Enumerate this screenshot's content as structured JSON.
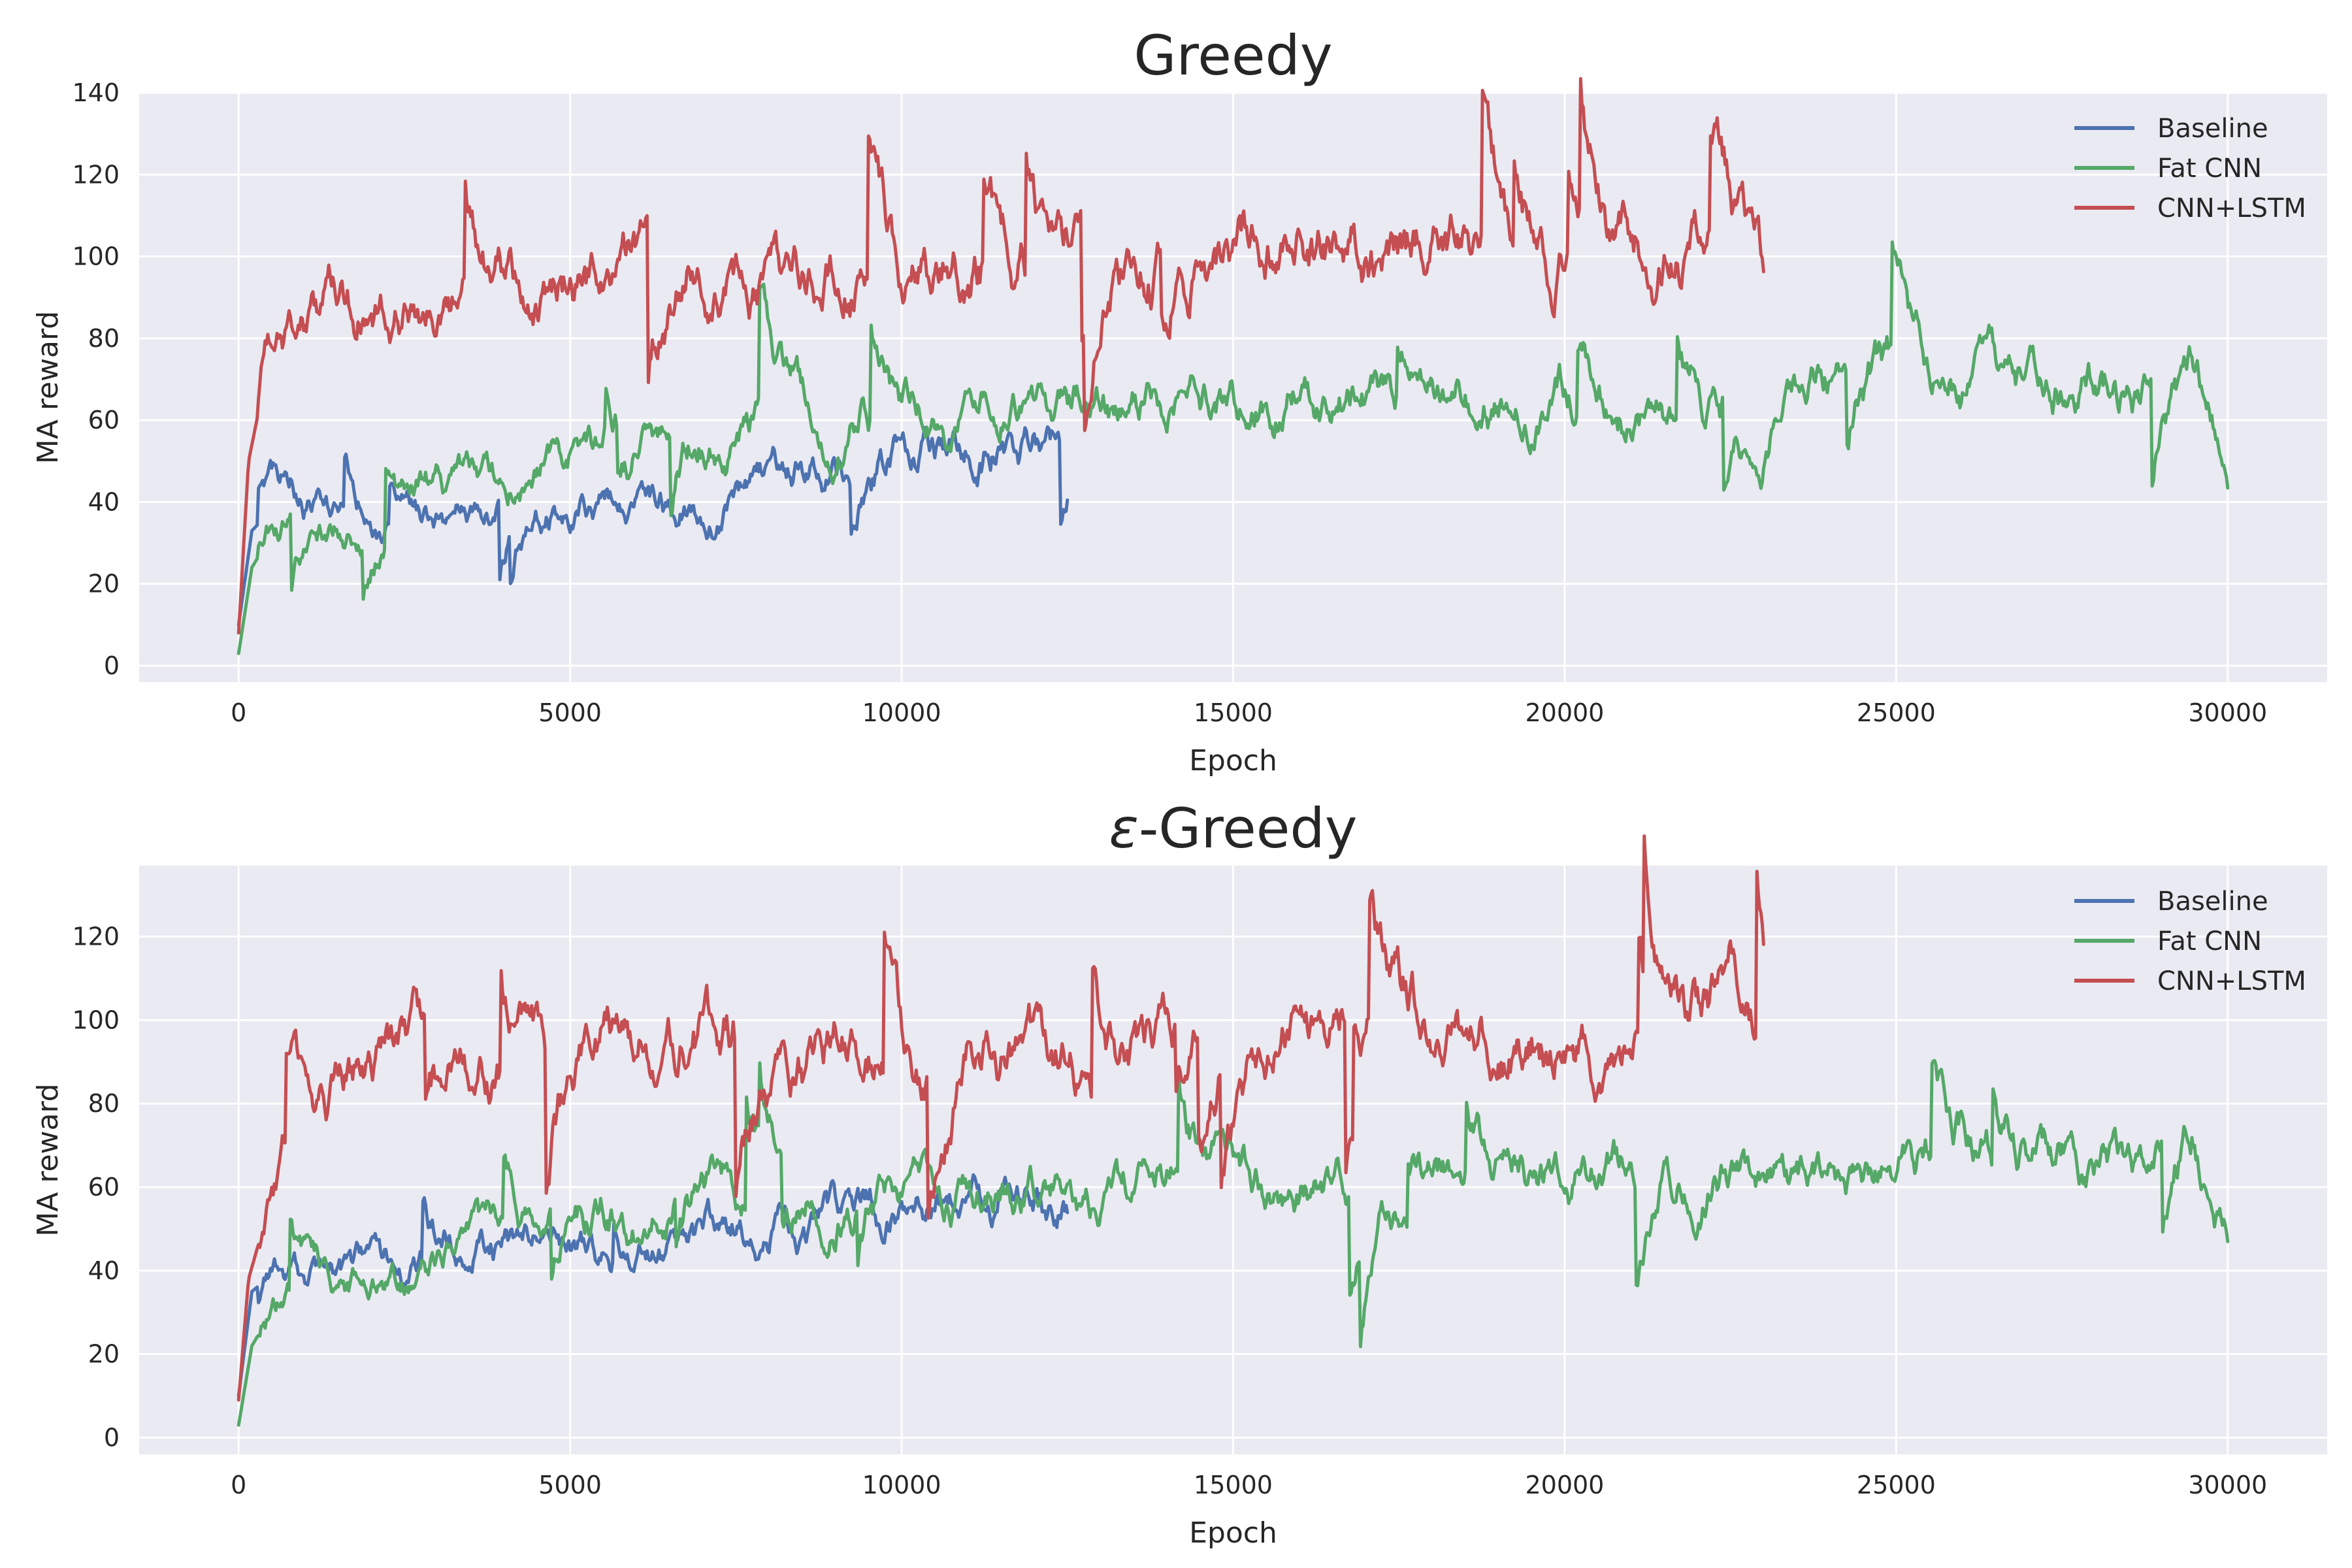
{
  "colors": {
    "baseline": "#4c72b0",
    "fat_cnn": "#55a868",
    "cnn_lstm": "#c44e52",
    "plot_background": "#eaeaf2",
    "grid": "#ffffff",
    "text": "#262626"
  },
  "chart_data": [
    {
      "type": "line",
      "title": "Greedy",
      "xlabel": "Epoch",
      "ylabel": "MA reward",
      "xlim": [
        -1500,
        31500
      ],
      "ylim": [
        -4,
        140
      ],
      "xticks": [
        0,
        5000,
        10000,
        15000,
        20000,
        25000,
        30000
      ],
      "yticks": [
        0,
        20,
        40,
        60,
        80,
        100,
        120,
        140
      ],
      "grid": true,
      "legend": "top-right",
      "series": [
        {
          "name": "Baseline",
          "color": "#4c72b0",
          "points": [
            [
              0,
              10
            ],
            [
              200,
              33
            ],
            [
              500,
              38
            ],
            [
              800,
              40
            ],
            [
              1200,
              39
            ],
            [
              1600,
              37
            ],
            [
              2000,
              35
            ],
            [
              2500,
              34
            ],
            [
              3000,
              36
            ],
            [
              3500,
              38
            ],
            [
              4000,
              39
            ],
            [
              4500,
              40
            ],
            [
              5000,
              41
            ],
            [
              5500,
              41
            ],
            [
              6000,
              40
            ],
            [
              6500,
              39
            ],
            [
              7000,
              41
            ],
            [
              7500,
              42
            ],
            [
              8000,
              44
            ],
            [
              8500,
              47
            ],
            [
              9000,
              48
            ],
            [
              9500,
              50
            ],
            [
              10000,
              52
            ],
            [
              10500,
              54
            ],
            [
              11000,
              56
            ],
            [
              11500,
              56
            ],
            [
              12000,
              54
            ],
            [
              12500,
              53
            ]
          ]
        },
        {
          "name": "Fat CNN",
          "color": "#55a868",
          "points": [
            [
              0,
              3
            ],
            [
              200,
              24
            ],
            [
              500,
              32
            ],
            [
              800,
              35
            ],
            [
              1200,
              36
            ],
            [
              1600,
              34
            ],
            [
              2000,
              35
            ],
            [
              2500,
              37
            ],
            [
              3000,
              42
            ],
            [
              3500,
              44
            ],
            [
              4000,
              46
            ],
            [
              4500,
              50
            ],
            [
              5000,
              55
            ],
            [
              5500,
              53
            ],
            [
              6000,
              56
            ],
            [
              6500,
              60
            ],
            [
              7000,
              58
            ],
            [
              7500,
              56
            ],
            [
              8000,
              60
            ],
            [
              8500,
              62
            ],
            [
              9000,
              58
            ],
            [
              9500,
              65
            ],
            [
              10000,
              60
            ],
            [
              10500,
              58
            ],
            [
              11000,
              62
            ],
            [
              11500,
              65
            ],
            [
              12000,
              63
            ],
            [
              13000,
              62
            ],
            [
              14000,
              65
            ],
            [
              15000,
              66
            ],
            [
              16000,
              68
            ],
            [
              17000,
              66
            ],
            [
              18000,
              64
            ],
            [
              19000,
              66
            ],
            [
              20000,
              68
            ],
            [
              21000,
              60
            ],
            [
              22000,
              62
            ],
            [
              23000,
              60
            ],
            [
              24000,
              70
            ],
            [
              25000,
              75
            ],
            [
              26000,
              68
            ],
            [
              27000,
              66
            ],
            [
              28000,
              67
            ],
            [
              29000,
              65
            ],
            [
              29500,
              72
            ],
            [
              30000,
              46
            ]
          ]
        },
        {
          "name": "CNN+LSTM",
          "color": "#c44e52",
          "points": [
            [
              0,
              8
            ],
            [
              150,
              50
            ],
            [
              400,
              70
            ],
            [
              800,
              78
            ],
            [
              1200,
              84
            ],
            [
              1600,
              88
            ],
            [
              2000,
              90
            ],
            [
              2500,
              88
            ],
            [
              3000,
              86
            ],
            [
              3500,
              90
            ],
            [
              4000,
              92
            ],
            [
              4500,
              90
            ],
            [
              5000,
              92
            ],
            [
              5500,
              93
            ],
            [
              6000,
              95
            ],
            [
              6500,
              98
            ],
            [
              7000,
              100
            ],
            [
              7500,
              97
            ],
            [
              8000,
              90
            ],
            [
              8500,
              92
            ],
            [
              9000,
              98
            ],
            [
              9500,
              96
            ],
            [
              10000,
              95
            ],
            [
              11000,
              98
            ],
            [
              12000,
              97
            ],
            [
              13000,
              99
            ],
            [
              14000,
              100
            ],
            [
              15000,
              102
            ],
            [
              16000,
              104
            ],
            [
              17000,
              100
            ],
            [
              18000,
              102
            ],
            [
              19000,
              99
            ],
            [
              20000,
              100
            ],
            [
              21000,
              100
            ],
            [
              22000,
              104
            ],
            [
              22500,
              108
            ],
            [
              23000,
              95
            ]
          ]
        }
      ]
    },
    {
      "type": "line",
      "title": "-Greedy",
      "title_symbol": "ε",
      "xlabel": "Epoch",
      "ylabel": "MA reward",
      "xlim": [
        -1500,
        31500
      ],
      "ylim": [
        -4,
        137
      ],
      "xticks": [
        0,
        5000,
        10000,
        15000,
        20000,
        25000,
        30000
      ],
      "yticks": [
        0,
        20,
        40,
        60,
        80,
        100,
        120
      ],
      "grid": true,
      "legend": "top-right",
      "series": [
        {
          "name": "Baseline",
          "color": "#4c72b0",
          "points": [
            [
              0,
              10
            ],
            [
              200,
              35
            ],
            [
              500,
              39
            ],
            [
              800,
              39
            ],
            [
              1200,
              38
            ],
            [
              1600,
              37
            ],
            [
              2000,
              39
            ],
            [
              2500,
              40
            ],
            [
              3000,
              42
            ],
            [
              3500,
              45
            ],
            [
              4000,
              46
            ],
            [
              4500,
              47
            ],
            [
              5000,
              44
            ],
            [
              5500,
              43
            ],
            [
              6000,
              42
            ],
            [
              6500,
              45
            ],
            [
              7000,
              48
            ],
            [
              7500,
              50
            ],
            [
              8000,
              52
            ],
            [
              8500,
              50
            ],
            [
              9000,
              52
            ],
            [
              9500,
              53
            ],
            [
              10000,
              55
            ],
            [
              10500,
              56
            ],
            [
              11000,
              57
            ],
            [
              11500,
              58
            ],
            [
              12000,
              58
            ],
            [
              12500,
              56
            ]
          ]
        },
        {
          "name": "Fat CNN",
          "color": "#55a868",
          "points": [
            [
              0,
              3
            ],
            [
              200,
              22
            ],
            [
              500,
              30
            ],
            [
              800,
              34
            ],
            [
              1200,
              36
            ],
            [
              1600,
              35
            ],
            [
              2000,
              36
            ],
            [
              2500,
              37
            ],
            [
              3000,
              42
            ],
            [
              3500,
              45
            ],
            [
              4000,
              48
            ],
            [
              4500,
              52
            ],
            [
              5000,
              55
            ],
            [
              5500,
              56
            ],
            [
              6000,
              52
            ],
            [
              6500,
              58
            ],
            [
              7000,
              62
            ],
            [
              7500,
              58
            ],
            [
              8000,
              60
            ],
            [
              8500,
              62
            ],
            [
              9000,
              56
            ],
            [
              9500,
              60
            ],
            [
              10000,
              58
            ],
            [
              10500,
              60
            ],
            [
              11000,
              62
            ],
            [
              11500,
              60
            ],
            [
              12000,
              58
            ],
            [
              13000,
              56
            ],
            [
              14000,
              64
            ],
            [
              15000,
              65
            ],
            [
              16000,
              62
            ],
            [
              17000,
              60
            ],
            [
              18000,
              62
            ],
            [
              19000,
              65
            ],
            [
              20000,
              62
            ],
            [
              21000,
              64
            ],
            [
              22000,
              66
            ],
            [
              23000,
              62
            ],
            [
              24000,
              63
            ],
            [
              25000,
              66
            ],
            [
              26000,
              70
            ],
            [
              27000,
              65
            ],
            [
              28000,
              63
            ],
            [
              29000,
              67
            ],
            [
              29500,
              78
            ],
            [
              30000,
              52
            ]
          ]
        },
        {
          "name": "CNN+LSTM",
          "color": "#c44e52",
          "points": [
            [
              0,
              9
            ],
            [
              150,
              38
            ],
            [
              400,
              52
            ],
            [
              800,
              72
            ],
            [
              1200,
              78
            ],
            [
              1600,
              84
            ],
            [
              2000,
              88
            ],
            [
              2500,
              92
            ],
            [
              3000,
              94
            ],
            [
              3500,
              88
            ],
            [
              4000,
              86
            ],
            [
              4500,
              90
            ],
            [
              5000,
              93
            ],
            [
              5500,
              92
            ],
            [
              6000,
              91
            ],
            [
              6500,
              94
            ],
            [
              7000,
              95
            ],
            [
              7500,
              96
            ],
            [
              8000,
              92
            ],
            [
              8500,
              90
            ],
            [
              9000,
              95
            ],
            [
              9500,
              92
            ],
            [
              10000,
              82
            ],
            [
              10500,
              88
            ],
            [
              11000,
              95
            ],
            [
              12000,
              90
            ],
            [
              13000,
              88
            ],
            [
              14000,
              92
            ],
            [
              15000,
              91
            ],
            [
              16000,
              94
            ],
            [
              17000,
              102
            ],
            [
              18000,
              98
            ],
            [
              19000,
              97
            ],
            [
              20000,
              96
            ],
            [
              21000,
              90
            ],
            [
              22000,
              100
            ],
            [
              22500,
              108
            ],
            [
              23000,
              95
            ]
          ]
        }
      ]
    }
  ]
}
